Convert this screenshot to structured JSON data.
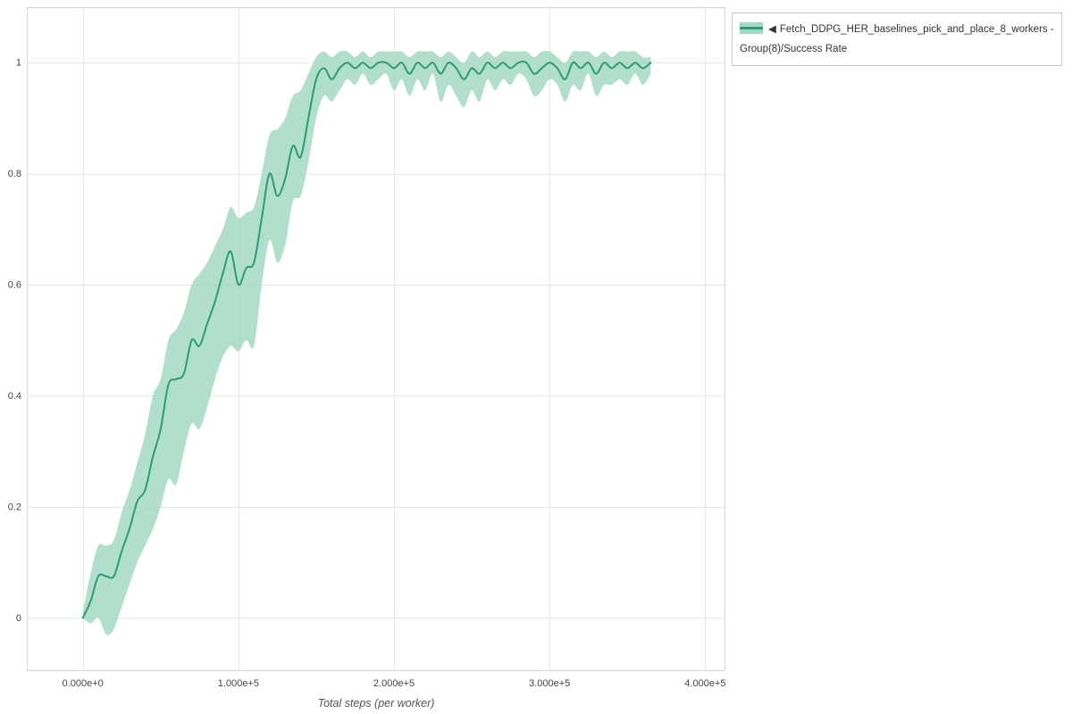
{
  "figure": {
    "legend": {
      "collapse_icon": "◀",
      "label": "Fetch_DDPG_HER_baselines_pick_and_place_8_workers - Group(8)/Success Rate"
    }
  },
  "colors": {
    "line": "#2a9d78",
    "band": "#9fd6bf",
    "grid": "#e7e7e7",
    "plot_border": "#d4d4d4",
    "tick_text": "#444444",
    "axis_title_text": "#555555"
  },
  "chart_data": {
    "type": "line",
    "title": "",
    "xlabel": "Total steps (per worker)",
    "ylabel": "Success Rate",
    "grid": true,
    "legend_position": "top-right",
    "xlim": [
      -36000,
      413000
    ],
    "ylim": [
      -0.096,
      1.1
    ],
    "x_ticks": [
      0,
      100000,
      200000,
      300000,
      400000
    ],
    "x_tick_labels": [
      "0.000e+0",
      "1.000e+5",
      "2.000e+5",
      "3.000e+5",
      "4.000e+5"
    ],
    "y_ticks": [
      0,
      0.2,
      0.4,
      0.6,
      0.8,
      1
    ],
    "y_tick_labels": [
      "0",
      "0.2",
      "0.4",
      "0.6",
      "0.8",
      "1"
    ],
    "series": [
      {
        "name": "Fetch_DDPG_HER_baselines_pick_and_place_8_workers - Group(8)/Success Rate",
        "x": [
          0,
          5000,
          10000,
          15000,
          20000,
          25000,
          30000,
          35000,
          40000,
          45000,
          50000,
          55000,
          60000,
          65000,
          70000,
          75000,
          80000,
          85000,
          90000,
          95000,
          100000,
          105000,
          110000,
          115000,
          120000,
          125000,
          130000,
          135000,
          140000,
          145000,
          150000,
          155000,
          160000,
          165000,
          170000,
          175000,
          180000,
          185000,
          190000,
          195000,
          200000,
          205000,
          210000,
          215000,
          220000,
          225000,
          230000,
          235000,
          240000,
          245000,
          250000,
          255000,
          260000,
          265000,
          270000,
          275000,
          280000,
          285000,
          290000,
          295000,
          300000,
          305000,
          310000,
          315000,
          320000,
          325000,
          330000,
          335000,
          340000,
          345000,
          350000,
          355000,
          360000,
          365000
        ],
        "mean": [
          0.0,
          0.03,
          0.075,
          0.075,
          0.075,
          0.12,
          0.16,
          0.21,
          0.23,
          0.29,
          0.34,
          0.42,
          0.43,
          0.44,
          0.5,
          0.49,
          0.53,
          0.57,
          0.62,
          0.66,
          0.6,
          0.63,
          0.64,
          0.72,
          0.8,
          0.76,
          0.79,
          0.85,
          0.83,
          0.9,
          0.97,
          0.99,
          0.97,
          0.99,
          1.0,
          0.99,
          1.0,
          0.99,
          1.0,
          1.0,
          0.99,
          1.0,
          0.98,
          1.0,
          0.99,
          1.0,
          0.98,
          1.0,
          0.99,
          0.97,
          0.99,
          0.98,
          1.0,
          0.99,
          1.0,
          0.99,
          1.0,
          1.0,
          0.98,
          0.99,
          1.0,
          0.99,
          0.97,
          1.0,
          0.99,
          1.0,
          0.98,
          1.0,
          0.99,
          1.0,
          0.99,
          1.0,
          0.99,
          1.0
        ],
        "lo": [
          0.0,
          -0.01,
          0.0,
          -0.03,
          -0.02,
          0.02,
          0.06,
          0.1,
          0.13,
          0.16,
          0.2,
          0.25,
          0.24,
          0.3,
          0.35,
          0.34,
          0.38,
          0.43,
          0.47,
          0.49,
          0.48,
          0.5,
          0.49,
          0.6,
          0.68,
          0.64,
          0.67,
          0.75,
          0.76,
          0.82,
          0.9,
          0.94,
          0.93,
          0.95,
          0.97,
          0.96,
          0.98,
          0.96,
          0.97,
          0.98,
          0.95,
          0.97,
          0.94,
          0.97,
          0.95,
          0.98,
          0.93,
          0.96,
          0.94,
          0.92,
          0.95,
          0.93,
          0.97,
          0.95,
          0.97,
          0.96,
          0.98,
          0.97,
          0.94,
          0.95,
          0.97,
          0.96,
          0.93,
          0.96,
          0.95,
          0.98,
          0.94,
          0.96,
          0.96,
          0.97,
          0.96,
          0.98,
          0.96,
          0.98
        ],
        "hi": [
          0.01,
          0.08,
          0.13,
          0.13,
          0.14,
          0.19,
          0.23,
          0.28,
          0.33,
          0.4,
          0.43,
          0.5,
          0.52,
          0.55,
          0.6,
          0.62,
          0.64,
          0.67,
          0.7,
          0.74,
          0.72,
          0.73,
          0.74,
          0.8,
          0.87,
          0.88,
          0.9,
          0.94,
          0.95,
          0.98,
          1.01,
          1.02,
          1.01,
          1.02,
          1.02,
          1.01,
          1.02,
          1.01,
          1.02,
          1.02,
          1.02,
          1.02,
          1.01,
          1.02,
          1.02,
          1.02,
          1.01,
          1.02,
          1.01,
          1.0,
          1.02,
          1.01,
          1.02,
          1.01,
          1.02,
          1.02,
          1.02,
          1.02,
          1.01,
          1.02,
          1.02,
          1.01,
          1.0,
          1.02,
          1.02,
          1.02,
          1.01,
          1.02,
          1.01,
          1.02,
          1.02,
          1.02,
          1.01,
          1.01
        ]
      }
    ]
  }
}
